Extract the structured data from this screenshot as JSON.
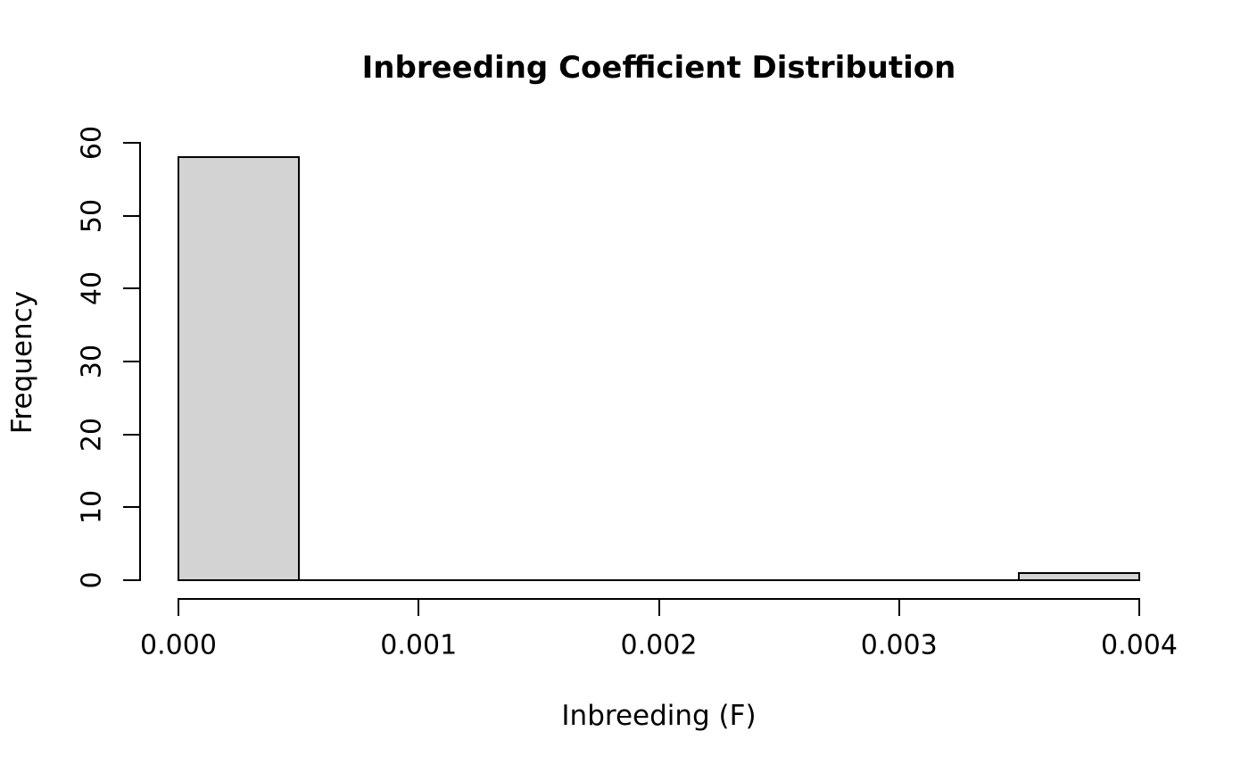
{
  "figure": {
    "background": "#ffffff",
    "text_color": "#000000"
  },
  "chart_data": {
    "type": "bar",
    "subtype": "histogram",
    "title": "Inbreeding Coefficient Distribution",
    "xlabel": "Inbreeding (F)",
    "ylabel": "Frequency",
    "xlim": [
      0,
      0.004
    ],
    "ylim": [
      0,
      60
    ],
    "bin_width": 0.0005,
    "bins": [
      {
        "x0": 0.0,
        "x1": 0.0005,
        "count": 58
      },
      {
        "x0": 0.0005,
        "x1": 0.001,
        "count": 0
      },
      {
        "x0": 0.001,
        "x1": 0.0015,
        "count": 0
      },
      {
        "x0": 0.0015,
        "x1": 0.002,
        "count": 0
      },
      {
        "x0": 0.002,
        "x1": 0.0025,
        "count": 0
      },
      {
        "x0": 0.0025,
        "x1": 0.003,
        "count": 0
      },
      {
        "x0": 0.003,
        "x1": 0.0035,
        "count": 0
      },
      {
        "x0": 0.0035,
        "x1": 0.004,
        "count": 1
      }
    ],
    "x_ticks": [
      {
        "value": 0.0,
        "label": "0.000"
      },
      {
        "value": 0.001,
        "label": "0.001"
      },
      {
        "value": 0.002,
        "label": "0.002"
      },
      {
        "value": 0.003,
        "label": "0.003"
      },
      {
        "value": 0.004,
        "label": "0.004"
      }
    ],
    "y_ticks": [
      {
        "value": 0,
        "label": "0"
      },
      {
        "value": 10,
        "label": "10"
      },
      {
        "value": 20,
        "label": "20"
      },
      {
        "value": 30,
        "label": "30"
      },
      {
        "value": 40,
        "label": "40"
      },
      {
        "value": 50,
        "label": "50"
      },
      {
        "value": 60,
        "label": "60"
      }
    ],
    "bar_fill": "#d3d3d3",
    "bar_border": "#000000",
    "axis_color": "#000000",
    "grid": false,
    "legend": false
  }
}
